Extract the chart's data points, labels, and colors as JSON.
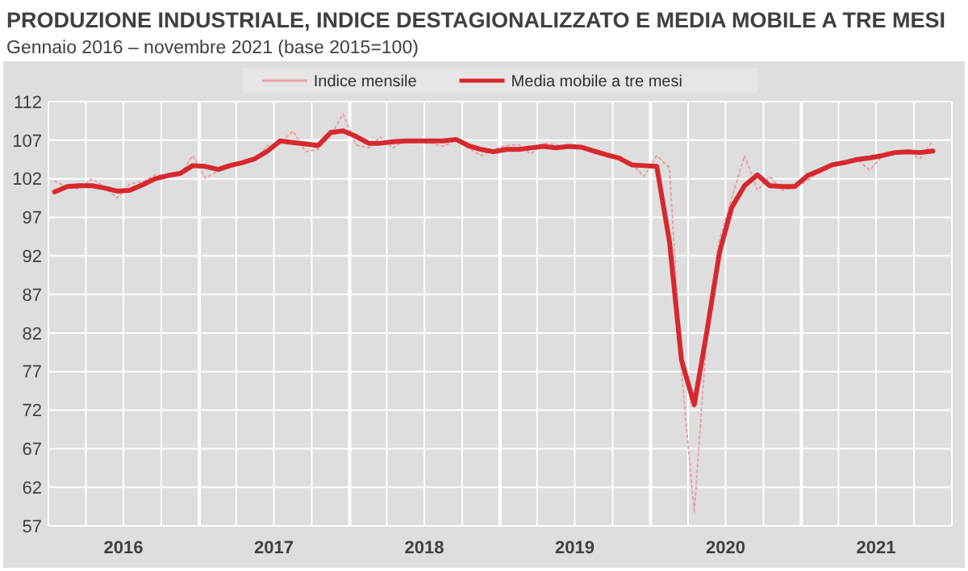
{
  "chart_data": {
    "type": "line",
    "title": "PRODUZIONE INDUSTRIALE, INDICE DESTAGIONALIZZATO E MEDIA MOBILE A TRE MESI",
    "subtitle": "Gennaio 2016 – novembre 2021 (base 2015=100)",
    "x": [
      "2016-01-16",
      "2016-02-16",
      "2016-03-16",
      "2016-04-16",
      "2016-05-16",
      "2016-06-16",
      "2016-07-16",
      "2016-08-16",
      "2016-09-16",
      "2016-10-16",
      "2016-11-16",
      "2016-12-16",
      "2017-01-16",
      "2017-02-16",
      "2017-03-16",
      "2017-04-16",
      "2017-05-16",
      "2017-06-16",
      "2017-07-16",
      "2017-08-16",
      "2017-09-16",
      "2017-10-16",
      "2017-11-16",
      "2017-12-16",
      "2018-01-16",
      "2018-02-16",
      "2018-03-16",
      "2018-04-16",
      "2018-05-16",
      "2018-06-16",
      "2018-07-16",
      "2018-08-16",
      "2018-09-16",
      "2018-10-16",
      "2018-11-16",
      "2018-12-16",
      "2019-01-16",
      "2019-02-16",
      "2019-03-16",
      "2019-04-16",
      "2019-05-16",
      "2019-06-16",
      "2019-07-16",
      "2019-08-16",
      "2019-09-16",
      "2019-10-16",
      "2019-11-16",
      "2019-12-16",
      "2020-01-16",
      "2020-02-16",
      "2020-03-16",
      "2020-04-16",
      "2020-05-16",
      "2020-06-16",
      "2020-07-16",
      "2020-08-16",
      "2020-09-16",
      "2020-10-16",
      "2020-11-16",
      "2020-12-16",
      "2021-01-16",
      "2021-02-16",
      "2021-03-16",
      "2021-04-16",
      "2021-05-16",
      "2021-06-16",
      "2021-07-16",
      "2021-08-16",
      "2021-09-16",
      "2021-10-16",
      "2021-11-16"
    ],
    "series": [
      {
        "name": "Indice mensile",
        "color": "#e8a0a4",
        "line_style": "dotted",
        "values": [
          101.7,
          100.9,
          100.7,
          102.0,
          100.9,
          99.5,
          101.3,
          101.6,
          102.5,
          102.5,
          102.5,
          105.0,
          102.1,
          103.0,
          103.8,
          104.0,
          104.5,
          106.3,
          106.5,
          108.2,
          105.5,
          105.8,
          107.6,
          110.4,
          106.4,
          106.0,
          107.4,
          106.0,
          107.0,
          106.8,
          106.6,
          106.2,
          107.0,
          106.0,
          105.0,
          105.8,
          106.3,
          106.4,
          105.2,
          106.6,
          106.4,
          106.0,
          106.1,
          105.3,
          104.9,
          104.5,
          104.0,
          102.3,
          105.0,
          103.4,
          77.0,
          58.7,
          81.5,
          94.0,
          99.5,
          105.0,
          100.5,
          102.3,
          100.5,
          100.9,
          101.8,
          103.0,
          103.6,
          104.0,
          104.5,
          103.1,
          105.0,
          105.2,
          105.5,
          104.6,
          106.9
        ]
      },
      {
        "name": "Media mobile a tre mesi",
        "color": "#d7282f",
        "line_style": "solid",
        "values": [
          100.3,
          101.0,
          101.1,
          101.1,
          100.8,
          100.4,
          100.5,
          101.2,
          102.0,
          102.4,
          102.7,
          103.7,
          103.6,
          103.2,
          103.7,
          104.1,
          104.6,
          105.6,
          106.9,
          106.7,
          106.5,
          106.3,
          108.0,
          108.2,
          107.5,
          106.6,
          106.6,
          106.8,
          106.9,
          106.9,
          106.9,
          106.9,
          107.1,
          106.3,
          105.8,
          105.5,
          105.8,
          105.8,
          106.0,
          106.2,
          106.0,
          106.2,
          106.1,
          105.6,
          105.1,
          104.7,
          103.8,
          103.7,
          103.6,
          93.8,
          78.5,
          72.7,
          82.0,
          92.4,
          98.3,
          101.1,
          102.5,
          101.1,
          101.0,
          101.0,
          102.4,
          103.1,
          103.8,
          104.1,
          104.5,
          104.7,
          105.0,
          105.4,
          105.5,
          105.4,
          105.6
        ]
      }
    ],
    "xlim": [
      "2016-01-01",
      "2022-01-01"
    ],
    "xticks": [
      {
        "value": "2016-04-01",
        "label": null
      },
      {
        "value": "2016-07-01",
        "label": "2016"
      },
      {
        "value": "2016-10-01",
        "label": null
      },
      {
        "value": "2017-01-01",
        "label": null
      },
      {
        "value": "2017-04-01",
        "label": null
      },
      {
        "value": "2017-07-01",
        "label": "2017"
      },
      {
        "value": "2017-10-01",
        "label": null
      },
      {
        "value": "2018-01-01",
        "label": null
      },
      {
        "value": "2018-04-01",
        "label": null
      },
      {
        "value": "2018-07-01",
        "label": "2018"
      },
      {
        "value": "2018-10-01",
        "label": null
      },
      {
        "value": "2019-01-01",
        "label": null
      },
      {
        "value": "2019-04-01",
        "label": null
      },
      {
        "value": "2019-07-01",
        "label": "2019"
      },
      {
        "value": "2019-10-01",
        "label": null
      },
      {
        "value": "2020-01-01",
        "label": null
      },
      {
        "value": "2020-04-01",
        "label": null
      },
      {
        "value": "2020-07-01",
        "label": "2020"
      },
      {
        "value": "2020-10-01",
        "label": null
      },
      {
        "value": "2021-01-01",
        "label": null
      },
      {
        "value": "2021-04-01",
        "label": null
      },
      {
        "value": "2021-07-01",
        "label": "2021"
      },
      {
        "value": "2021-10-01",
        "label": null
      }
    ],
    "ylim": [
      57,
      112
    ],
    "yticks": [
      57,
      62,
      67,
      72,
      77,
      82,
      87,
      92,
      97,
      102,
      107,
      112
    ],
    "grid": true,
    "legend": "top",
    "marker": "none"
  }
}
